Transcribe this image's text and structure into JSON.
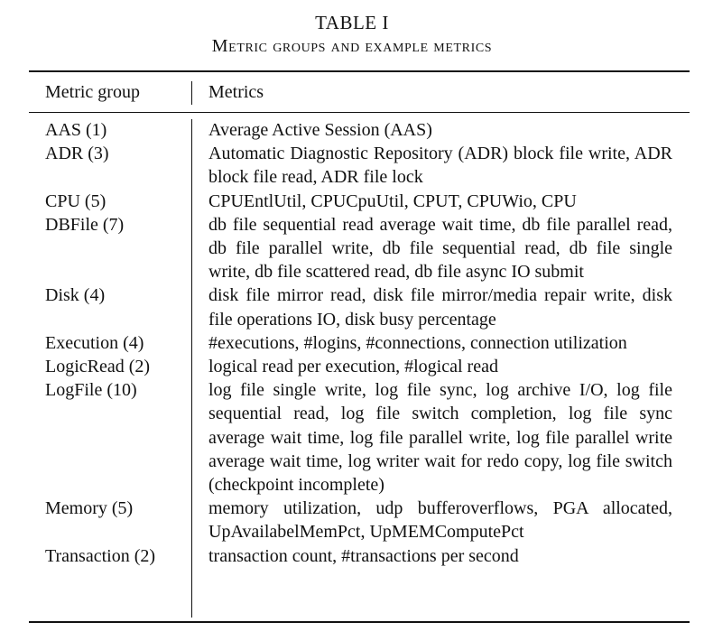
{
  "caption": {
    "label": "TABLE I",
    "title": "Metric groups and example metrics"
  },
  "header": {
    "col1": "Metric group",
    "col2": "Metrics"
  },
  "rows": [
    {
      "group": "AAS (1)",
      "metrics": "Average Active Session (AAS)"
    },
    {
      "group": "ADR (3)",
      "metrics": "Automatic Diagnostic Repository (ADR) block file write, ADR block file read, ADR file lock"
    },
    {
      "group": "CPU (5)",
      "metrics": "CPUEntlUtil, CPUCpuUtil, CPUT, CPUWio, CPU"
    },
    {
      "group": "DBFile (7)",
      "metrics": "db file sequential read average wait time, db file parallel read, db file parallel write, db file sequential read, db file single write, db file scattered read, db file async IO submit"
    },
    {
      "group": "Disk (4)",
      "metrics": "disk file mirror read, disk file mirror/media repair write, disk file operations IO, disk busy percentage"
    },
    {
      "group": "Execution (4)",
      "metrics": "#executions, #logins, #connections, connection utiliza­tion"
    },
    {
      "group": "LogicRead (2)",
      "metrics": "logical read per execution, #logical read"
    },
    {
      "group": "LogFile (10)",
      "metrics": "log file single write, log file sync, log archive I/O, log file sequential read, log file switch completion, log file sync average wait time, log file parallel write, log file parallel write average wait time, log writer wait for redo copy, log file switch (checkpoint incomplete)"
    },
    {
      "group": "Memory (5)",
      "metrics": "memory utilization, udp bufferoverflows, PGA allo­cated, UpAvailabelMemPct, UpMEMComputePct"
    },
    {
      "group": "Transaction (2)",
      "metrics": "transaction count, #transactions per second"
    }
  ]
}
